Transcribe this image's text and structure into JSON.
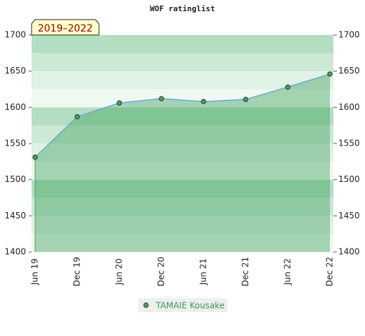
{
  "chart_data": {
    "type": "area",
    "title": "WOF ratinglist",
    "annotation": "2019–2022",
    "categories": [
      "Jun 19",
      "Dec 19",
      "Jun 20",
      "Dec 20",
      "Jun 21",
      "Dec 21",
      "Jun 22",
      "Dec 22"
    ],
    "series": [
      {
        "name": "TAMAIE Kousake",
        "color": "#4f9d62",
        "values": [
          1531,
          1587,
          1606,
          1612,
          1608,
          1611,
          1628,
          1646
        ]
      }
    ],
    "ylim": [
      1400,
      1700
    ],
    "yticks": [
      1400,
      1450,
      1500,
      1550,
      1600,
      1650,
      1700
    ],
    "y2lim": [
      1400,
      1700
    ],
    "y2ticks": [
      1400,
      1450,
      1500,
      1550,
      1600,
      1650,
      1700
    ]
  }
}
